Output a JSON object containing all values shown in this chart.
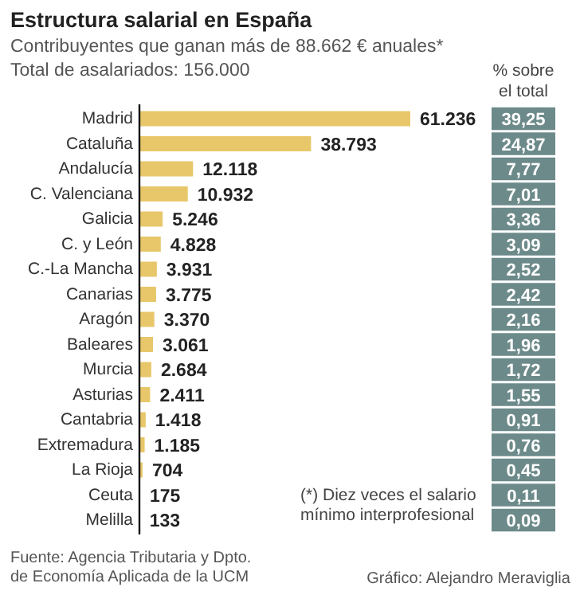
{
  "chart_data": [
    {
      "type": "bar",
      "orientation": "horizontal",
      "title": "Estructura salarial en España",
      "subtitle": "Contribuyentes que ganan más de 88.662 € anuales*",
      "categories": [
        "Madrid",
        "Cataluña",
        "Andalucía",
        "C. Valenciana",
        "Galicia",
        "C. y León",
        "C.-La Mancha",
        "Canarias",
        "Aragón",
        "Baleares",
        "Murcia",
        "Asturias",
        "Cantabria",
        "Extremadura",
        "La Rioja",
        "Ceuta",
        "Melilla"
      ],
      "values": [
        61236,
        38793,
        12118,
        10932,
        5246,
        4828,
        3931,
        3775,
        3370,
        3061,
        2684,
        2411,
        1418,
        1185,
        704,
        175,
        133
      ],
      "color": "#e8c76a",
      "value_labels": [
        "61.236",
        "38.793",
        "12.118",
        "10.932",
        "5.246",
        "4.828",
        "3.931",
        "3.775",
        "3.370",
        "3.061",
        "2.684",
        "2.411",
        "1.418",
        "1.185",
        "704",
        "175",
        "133"
      ],
      "annotations": [
        "Total de asalariados: 156.000",
        "(*) Diez veces el salario mínimo interprofesional",
        "Fuente: Agencia Tributaria y Dpto. de Economía Aplicada de la UCM",
        "Gráfico: Alejandro Meraviglia"
      ]
    },
    {
      "type": "other",
      "title": "% sobre el total",
      "color": "#6d8a8a",
      "annotations": [
        "39,25",
        "24,87",
        "7,77",
        "7,01",
        "3,36",
        "3,09",
        "2,52",
        "2,42",
        "2,16",
        "1,96",
        "1,72",
        "1,55",
        "0,91",
        "0,76",
        "0,45",
        "0,11",
        "0,09"
      ]
    }
  ]
}
